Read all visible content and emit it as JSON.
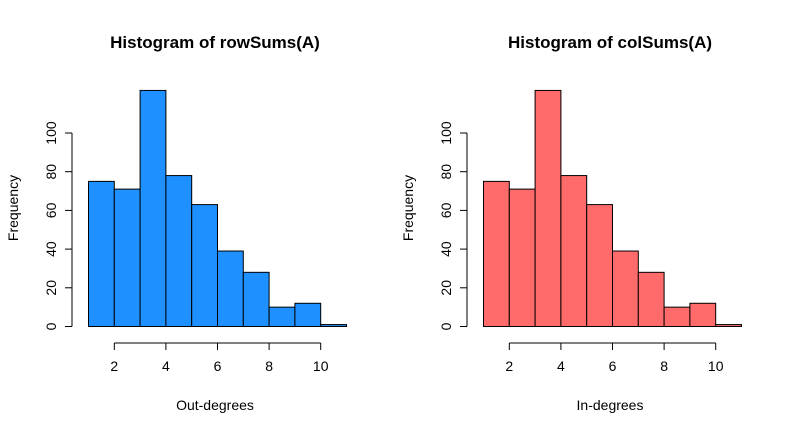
{
  "chart_data": [
    {
      "type": "bar",
      "title": "Histogram of rowSums(A)",
      "xlabel": "Out-degrees",
      "ylabel": "Frequency",
      "bin_edges": [
        1,
        2,
        3,
        4,
        5,
        6,
        7,
        8,
        9,
        10,
        11
      ],
      "values": [
        75,
        71,
        122,
        78,
        63,
        39,
        28,
        10,
        12,
        1
      ],
      "xticks": [
        2,
        4,
        6,
        8,
        10
      ],
      "yticks": [
        0,
        20,
        40,
        60,
        80,
        100
      ],
      "xlim": [
        1,
        11
      ],
      "ylim": [
        0,
        122
      ],
      "grid": false,
      "color": "#1E90FF"
    },
    {
      "type": "bar",
      "title": "Histogram of colSums(A)",
      "xlabel": "In-degrees",
      "ylabel": "Frequency",
      "bin_edges": [
        1,
        2,
        3,
        4,
        5,
        6,
        7,
        8,
        9,
        10,
        11
      ],
      "values": [
        75,
        71,
        122,
        78,
        63,
        39,
        28,
        10,
        12,
        1
      ],
      "xticks": [
        2,
        4,
        6,
        8,
        10
      ],
      "yticks": [
        0,
        20,
        40,
        60,
        80,
        100
      ],
      "xlim": [
        1,
        11
      ],
      "ylim": [
        0,
        122
      ],
      "grid": false,
      "color": "#FF6A6A"
    }
  ]
}
